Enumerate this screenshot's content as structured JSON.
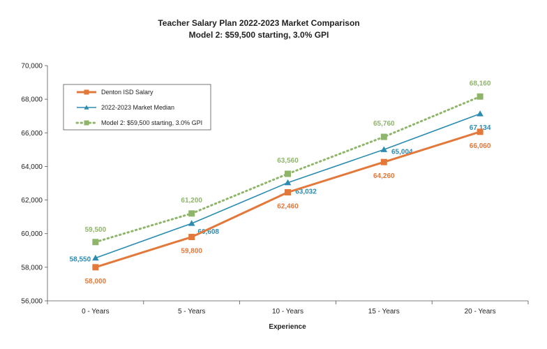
{
  "chart_data": {
    "type": "line",
    "title": "Teacher Salary Plan 2022-2023 Market Comparison",
    "subtitle": "Model 2: $59,500 starting, 3.0% GPI",
    "xlabel": "Experience",
    "ylabel": "",
    "categories": [
      "0 - Years",
      "5 - Years",
      "10 - Years",
      "15 - Years",
      "20 - Years"
    ],
    "ylim": [
      56000,
      70000
    ],
    "yticks": [
      56000,
      58000,
      60000,
      62000,
      64000,
      66000,
      68000,
      70000
    ],
    "ytick_labels": [
      "56,000",
      "58,000",
      "60,000",
      "62,000",
      "64,000",
      "66,000",
      "68,000",
      "70,000"
    ],
    "grid": false,
    "legend": "top-left",
    "series": [
      {
        "name": "Denton ISD Salary",
        "values": [
          58000,
          59800,
          62460,
          64260,
          66060
        ],
        "labels": [
          "58,000",
          "59,800",
          "62,460",
          "64,260",
          "66,060"
        ],
        "color": "#e2793a",
        "marker": "square",
        "line": "solid"
      },
      {
        "name": "2022-2023 Market Median",
        "values": [
          58550,
          60608,
          63032,
          65004,
          67134
        ],
        "labels": [
          "58,550",
          "60,608",
          "63,032",
          "65,004",
          "67,134"
        ],
        "color": "#2b8cb0",
        "marker": "triangle",
        "line": "solid"
      },
      {
        "name": "Model 2: $59,500 starting, 3.0% GPI",
        "values": [
          59500,
          61200,
          63560,
          65760,
          68160
        ],
        "labels": [
          "59,500",
          "61,200",
          "63,560",
          "65,760",
          "68,160"
        ],
        "color": "#8fb56a",
        "marker": "square",
        "line": "dotted"
      }
    ]
  }
}
